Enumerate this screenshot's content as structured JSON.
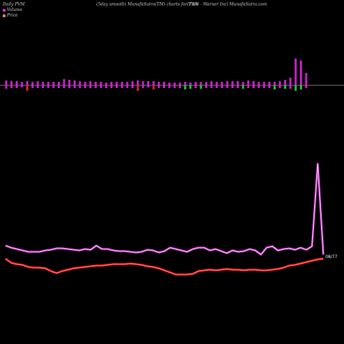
{
  "header": {
    "left": "Daily PVM",
    "center": "(5day smooth) MunafaSutra(TM) charts for TWX",
    "right": "(Time - Warner Inc) MunafaSutra.com"
  },
  "legend": [
    {
      "label": "Volume",
      "color": "#cc33cc"
    },
    {
      "label": "Price",
      "color": "#d4905a"
    }
  ],
  "colors": {
    "up_bar": "#cc22cc",
    "down_bar": "#e02030",
    "neg_bar": "#22cc33",
    "line_outer": "#cc33cc",
    "line_inner": "#ffffff",
    "price_line": "#ff1a1a",
    "price_inner": "#ff9999"
  },
  "chart_data": {
    "type": "bar+line",
    "last_price_label": "08/77",
    "volume_bars": [
      {
        "up": 7,
        "down": 5,
        "c": "m"
      },
      {
        "up": 6,
        "down": 4,
        "c": "m"
      },
      {
        "up": 6,
        "down": 4,
        "c": "m"
      },
      {
        "up": 5,
        "down": 3,
        "c": "m"
      },
      {
        "up": 6,
        "down": 8,
        "c": "r"
      },
      {
        "up": 5,
        "down": 4,
        "c": "m"
      },
      {
        "up": 6,
        "down": 4,
        "c": "m"
      },
      {
        "up": 5,
        "down": 4,
        "c": "m"
      },
      {
        "up": 5,
        "down": 4,
        "c": "m"
      },
      {
        "up": 5,
        "down": 4,
        "c": "m"
      },
      {
        "up": 5,
        "down": 4,
        "c": "m"
      },
      {
        "up": 9,
        "down": 4,
        "c": "m"
      },
      {
        "up": 8,
        "down": 4,
        "c": "m"
      },
      {
        "up": 7,
        "down": 4,
        "c": "m"
      },
      {
        "up": 6,
        "down": 4,
        "c": "m"
      },
      {
        "up": 5,
        "down": 4,
        "c": "m"
      },
      {
        "up": 6,
        "down": 4,
        "c": "m"
      },
      {
        "up": 5,
        "down": 4,
        "c": "m"
      },
      {
        "up": 5,
        "down": 4,
        "c": "m"
      },
      {
        "up": 4,
        "down": 4,
        "c": "m"
      },
      {
        "up": 5,
        "down": 4,
        "c": "m"
      },
      {
        "up": 5,
        "down": 4,
        "c": "m"
      },
      {
        "up": 5,
        "down": 4,
        "c": "m"
      },
      {
        "up": 5,
        "down": 4,
        "c": "m"
      },
      {
        "up": 6,
        "down": 4,
        "c": "m"
      },
      {
        "up": 7,
        "down": 8,
        "c": "r"
      },
      {
        "up": 6,
        "down": 4,
        "c": "m"
      },
      {
        "up": 6,
        "down": 3,
        "c": "m"
      },
      {
        "up": 6,
        "down": 6,
        "c": "r"
      },
      {
        "up": 5,
        "down": 4,
        "c": "m"
      },
      {
        "up": 5,
        "down": 4,
        "c": "m"
      },
      {
        "up": 4,
        "down": 4,
        "c": "m"
      },
      {
        "up": 4,
        "down": 4,
        "c": "m"
      },
      {
        "up": 4,
        "down": 4,
        "c": "m"
      },
      {
        "up": 5,
        "down": 6,
        "c": "g"
      },
      {
        "up": 4,
        "down": 5,
        "c": "g"
      },
      {
        "up": 5,
        "down": 4,
        "c": "m"
      },
      {
        "up": 5,
        "down": 5,
        "c": "g"
      },
      {
        "up": 5,
        "down": 4,
        "c": "m"
      },
      {
        "up": 6,
        "down": 4,
        "c": "m"
      },
      {
        "up": 5,
        "down": 4,
        "c": "m"
      },
      {
        "up": 5,
        "down": 4,
        "c": "m"
      },
      {
        "up": 6,
        "down": 4,
        "c": "m"
      },
      {
        "up": 6,
        "down": 4,
        "c": "m"
      },
      {
        "up": 6,
        "down": 4,
        "c": "m"
      },
      {
        "up": 5,
        "down": 5,
        "c": "g"
      },
      {
        "up": 7,
        "down": 4,
        "c": "m"
      },
      {
        "up": 6,
        "down": 4,
        "c": "m"
      },
      {
        "up": 5,
        "down": 4,
        "c": "m"
      },
      {
        "up": 5,
        "down": 4,
        "c": "m"
      },
      {
        "up": 5,
        "down": 4,
        "c": "m"
      },
      {
        "up": 5,
        "down": 6,
        "c": "g"
      },
      {
        "up": 6,
        "down": 4,
        "c": "m"
      },
      {
        "up": 8,
        "down": 5,
        "c": "g"
      },
      {
        "up": 11,
        "down": 5,
        "c": "m"
      },
      {
        "up": 39,
        "down": 8,
        "c": "g"
      },
      {
        "up": 36,
        "down": 6,
        "c": "g"
      },
      {
        "up": 18,
        "down": 4,
        "c": "m"
      }
    ],
    "volume_line": [
      357,
      360,
      362,
      364,
      366,
      366,
      366,
      364,
      363,
      361,
      361,
      362,
      363,
      364,
      362,
      363,
      357,
      362,
      362,
      364,
      365,
      365,
      366,
      367,
      366,
      363,
      364,
      367,
      365,
      360,
      362,
      364,
      366,
      362,
      360,
      360,
      364,
      362,
      365,
      368,
      364,
      366,
      365,
      362,
      364,
      370,
      360,
      358,
      364,
      362,
      361,
      363,
      360,
      363,
      358,
      238,
      370
    ],
    "price_line": [
      376,
      382,
      384,
      385,
      388,
      389,
      389,
      390,
      394,
      397,
      394,
      392,
      390,
      389,
      388,
      387,
      386,
      386,
      385,
      384,
      384,
      384,
      383,
      384,
      385,
      387,
      388,
      390,
      393,
      396,
      399,
      399,
      399,
      398,
      394,
      393,
      392,
      393,
      392,
      391,
      392,
      392,
      393,
      392,
      392,
      393,
      393,
      392,
      391,
      389,
      386,
      385,
      383,
      381,
      379,
      377,
      376
    ]
  }
}
